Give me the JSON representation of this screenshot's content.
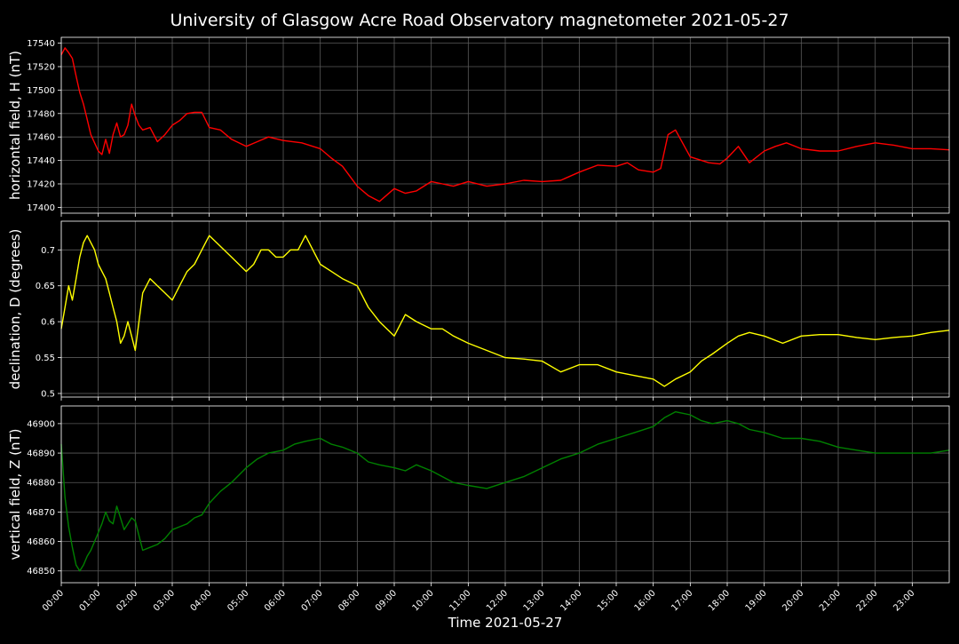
{
  "title": "University of Glasgow Acre Road Observatory magnetometer 2021-05-27",
  "xlabel": "Time 2021-05-27",
  "colors": {
    "background": "#000000",
    "grid": "#5a5a5a",
    "text": "#ffffff"
  },
  "chart_data": {
    "type": "line",
    "grid": true,
    "x_unit": "hours",
    "x_range": [
      0,
      24
    ],
    "x_ticks": [
      {
        "x": 0,
        "label": "00:00"
      },
      {
        "x": 1,
        "label": "01:00"
      },
      {
        "x": 2,
        "label": "02:00"
      },
      {
        "x": 3,
        "label": "03:00"
      },
      {
        "x": 4,
        "label": "04:00"
      },
      {
        "x": 5,
        "label": "05:00"
      },
      {
        "x": 6,
        "label": "06:00"
      },
      {
        "x": 7,
        "label": "07:00"
      },
      {
        "x": 8,
        "label": "08:00"
      },
      {
        "x": 9,
        "label": "09:00"
      },
      {
        "x": 10,
        "label": "10:00"
      },
      {
        "x": 11,
        "label": "11:00"
      },
      {
        "x": 12,
        "label": "12:00"
      },
      {
        "x": 13,
        "label": "13:00"
      },
      {
        "x": 14,
        "label": "14:00"
      },
      {
        "x": 15,
        "label": "15:00"
      },
      {
        "x": 16,
        "label": "16:00"
      },
      {
        "x": 17,
        "label": "17:00"
      },
      {
        "x": 18,
        "label": "18:00"
      },
      {
        "x": 19,
        "label": "19:00"
      },
      {
        "x": 20,
        "label": "20:00"
      },
      {
        "x": 21,
        "label": "21:00"
      },
      {
        "x": 22,
        "label": "22:00"
      },
      {
        "x": 23,
        "label": "23:00"
      }
    ],
    "panels": [
      {
        "id": "h",
        "ylabel": "horizontal field, H (nT)",
        "color": "#ff0000",
        "ylim": [
          17395,
          17545
        ],
        "y_ticks": [
          17400,
          17420,
          17440,
          17460,
          17480,
          17500,
          17520,
          17540
        ],
        "series": {
          "x": [
            0,
            0.1,
            0.2,
            0.3,
            0.4,
            0.5,
            0.6,
            0.7,
            0.8,
            0.9,
            1.0,
            1.1,
            1.2,
            1.3,
            1.4,
            1.5,
            1.6,
            1.7,
            1.8,
            1.9,
            2.0,
            2.1,
            2.2,
            2.4,
            2.6,
            2.8,
            3.0,
            3.2,
            3.4,
            3.6,
            3.8,
            4.0,
            4.3,
            4.6,
            5.0,
            5.3,
            5.6,
            6.0,
            6.5,
            7.0,
            7.3,
            7.6,
            8.0,
            8.3,
            8.6,
            9.0,
            9.3,
            9.6,
            10.0,
            10.3,
            10.6,
            11.0,
            11.5,
            12.0,
            12.5,
            13.0,
            13.5,
            14.0,
            14.5,
            15.0,
            15.3,
            15.6,
            16.0,
            16.2,
            16.4,
            16.6,
            17.0,
            17.5,
            17.8,
            18.0,
            18.3,
            18.6,
            19.0,
            19.3,
            19.6,
            20.0,
            20.5,
            21.0,
            21.5,
            22.0,
            22.5,
            23.0,
            23.5,
            24.0
          ],
          "y": [
            17530,
            17536,
            17532,
            17527,
            17512,
            17498,
            17488,
            17475,
            17462,
            17455,
            17448,
            17445,
            17458,
            17446,
            17462,
            17472,
            17460,
            17462,
            17470,
            17488,
            17478,
            17470,
            17466,
            17468,
            17456,
            17462,
            17470,
            17474,
            17480,
            17481,
            17481,
            17468,
            17466,
            17458,
            17452,
            17456,
            17460,
            17457,
            17455,
            17450,
            17442,
            17435,
            17418,
            17410,
            17405,
            17416,
            17412,
            17414,
            17422,
            17420,
            17418,
            17422,
            17418,
            17420,
            17423,
            17422,
            17423,
            17430,
            17436,
            17435,
            17438,
            17432,
            17430,
            17433,
            17462,
            17466,
            17443,
            17438,
            17437,
            17442,
            17452,
            17438,
            17448,
            17452,
            17455,
            17450,
            17448,
            17448,
            17452,
            17455,
            17453,
            17450,
            17450,
            17449
          ]
        }
      },
      {
        "id": "d",
        "ylabel": "declination, D (degrees)",
        "color": "#ffff00",
        "ylim": [
          0.495,
          0.74
        ],
        "y_ticks": [
          0.5,
          0.55,
          0.6,
          0.65,
          0.7
        ],
        "series": {
          "x": [
            0,
            0.1,
            0.2,
            0.3,
            0.4,
            0.5,
            0.6,
            0.7,
            0.8,
            0.9,
            1.0,
            1.1,
            1.2,
            1.3,
            1.4,
            1.5,
            1.6,
            1.7,
            1.8,
            1.9,
            2.0,
            2.1,
            2.2,
            2.4,
            2.6,
            2.8,
            3.0,
            3.2,
            3.4,
            3.6,
            3.8,
            4.0,
            4.2,
            4.4,
            4.6,
            4.8,
            5.0,
            5.2,
            5.4,
            5.6,
            5.8,
            6.0,
            6.2,
            6.4,
            6.6,
            6.8,
            7.0,
            7.3,
            7.6,
            8.0,
            8.3,
            8.6,
            9.0,
            9.3,
            9.6,
            10.0,
            10.3,
            10.6,
            11.0,
            11.5,
            12.0,
            12.5,
            13.0,
            13.5,
            14.0,
            14.5,
            15.0,
            15.5,
            16.0,
            16.3,
            16.6,
            17.0,
            17.3,
            17.6,
            18.0,
            18.3,
            18.6,
            19.0,
            19.5,
            20.0,
            20.5,
            21.0,
            21.5,
            22.0,
            22.5,
            23.0,
            23.5,
            24.0
          ],
          "y": [
            0.59,
            0.62,
            0.65,
            0.63,
            0.66,
            0.69,
            0.71,
            0.72,
            0.71,
            0.7,
            0.68,
            0.67,
            0.66,
            0.64,
            0.62,
            0.6,
            0.57,
            0.58,
            0.6,
            0.58,
            0.56,
            0.6,
            0.64,
            0.66,
            0.65,
            0.64,
            0.63,
            0.65,
            0.67,
            0.68,
            0.7,
            0.72,
            0.71,
            0.7,
            0.69,
            0.68,
            0.67,
            0.68,
            0.7,
            0.7,
            0.69,
            0.69,
            0.7,
            0.7,
            0.72,
            0.7,
            0.68,
            0.67,
            0.66,
            0.65,
            0.62,
            0.6,
            0.58,
            0.61,
            0.6,
            0.59,
            0.59,
            0.58,
            0.57,
            0.56,
            0.55,
            0.548,
            0.545,
            0.53,
            0.54,
            0.54,
            0.53,
            0.525,
            0.52,
            0.51,
            0.52,
            0.53,
            0.545,
            0.555,
            0.57,
            0.58,
            0.585,
            0.58,
            0.57,
            0.58,
            0.582,
            0.582,
            0.578,
            0.575,
            0.578,
            0.58,
            0.585,
            0.588
          ]
        }
      },
      {
        "id": "z",
        "ylabel": "vertical field, Z (nT)",
        "color": "#008000",
        "ylim": [
          46846,
          46906
        ],
        "y_ticks": [
          46850,
          46860,
          46870,
          46880,
          46890,
          46900
        ],
        "series": {
          "x": [
            0,
            0.1,
            0.2,
            0.3,
            0.4,
            0.5,
            0.6,
            0.7,
            0.8,
            0.9,
            1.0,
            1.1,
            1.2,
            1.3,
            1.4,
            1.5,
            1.6,
            1.7,
            1.8,
            1.9,
            2.0,
            2.1,
            2.2,
            2.4,
            2.6,
            2.8,
            3.0,
            3.2,
            3.4,
            3.6,
            3.8,
            4.0,
            4.3,
            4.6,
            5.0,
            5.3,
            5.6,
            6.0,
            6.3,
            6.6,
            7.0,
            7.3,
            7.6,
            8.0,
            8.3,
            8.6,
            9.0,
            9.3,
            9.6,
            10.0,
            10.3,
            10.6,
            11.0,
            11.5,
            12.0,
            12.5,
            13.0,
            13.5,
            14.0,
            14.5,
            15.0,
            15.5,
            16.0,
            16.3,
            16.6,
            17.0,
            17.3,
            17.6,
            18.0,
            18.3,
            18.6,
            19.0,
            19.5,
            20.0,
            20.5,
            21.0,
            21.5,
            22.0,
            22.5,
            23.0,
            23.5,
            24.0
          ],
          "y": [
            46893,
            46875,
            46865,
            46858,
            46852,
            46850,
            46852,
            46855,
            46857,
            46860,
            46863,
            46866,
            46870,
            46867,
            46866,
            46872,
            46868,
            46864,
            46866,
            46868,
            46867,
            46862,
            46857,
            46858,
            46859,
            46861,
            46864,
            46865,
            46866,
            46868,
            46869,
            46873,
            46877,
            46880,
            46885,
            46888,
            46890,
            46891,
            46893,
            46894,
            46895,
            46893,
            46892,
            46890,
            46887,
            46886,
            46885,
            46884,
            46886,
            46884,
            46882,
            46880,
            46879,
            46878,
            46880,
            46882,
            46885,
            46888,
            46890,
            46893,
            46895,
            46897,
            46899,
            46902,
            46904,
            46903,
            46901,
            46900,
            46901,
            46900,
            46898,
            46897,
            46895,
            46895,
            46894,
            46892,
            46891,
            46890,
            46890,
            46890,
            46890,
            46891
          ]
        }
      }
    ]
  }
}
